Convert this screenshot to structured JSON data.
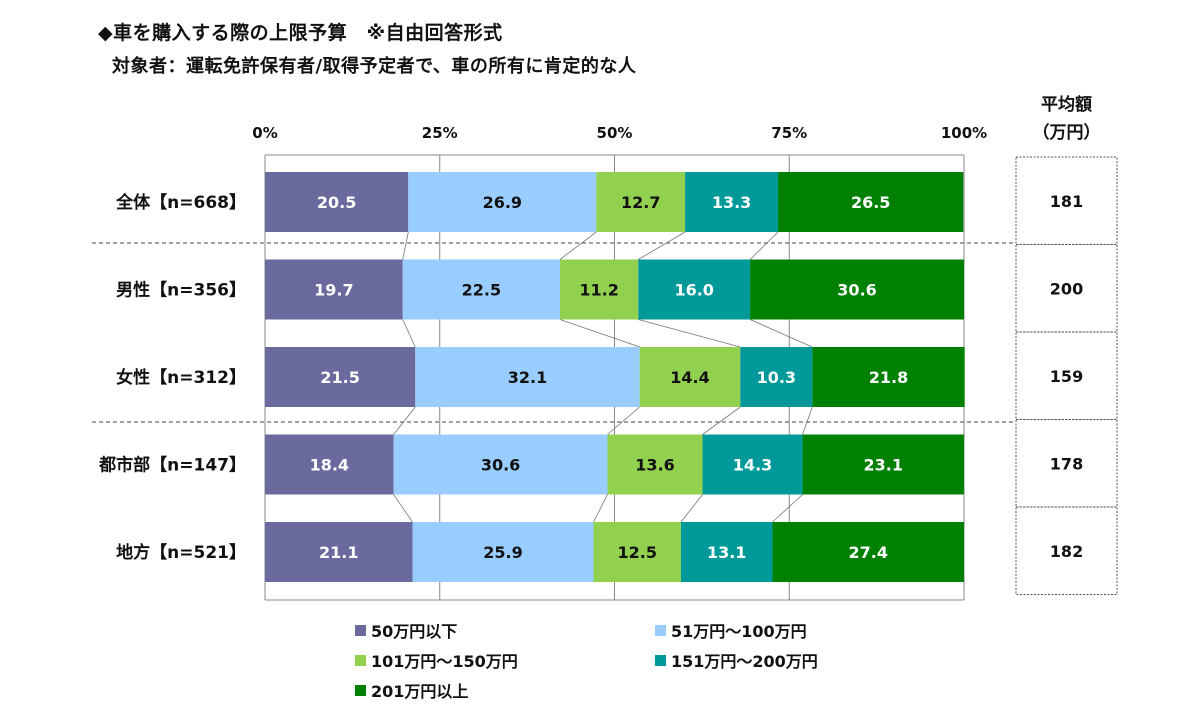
{
  "header": {
    "title": "◆車を購入する際の上限予算　※自由回答形式",
    "subtitle": "対象者：運転免許保有者/取得予定者で、車の所有に肯定的な人"
  },
  "chart_data": {
    "type": "bar",
    "orientation": "horizontal",
    "stacked": true,
    "percent": true,
    "x_ticks": [
      "0%",
      "25%",
      "50%",
      "75%",
      "100%"
    ],
    "xlim": [
      0,
      100
    ],
    "categories": [
      "全体【n=668】",
      "男性【n=356】",
      "女性【n=312】",
      "都市部【n=147】",
      "地方【n=521】"
    ],
    "series": [
      {
        "name": "50万円以下",
        "color": "#6B6A9E",
        "values": [
          20.5,
          19.7,
          21.5,
          18.4,
          21.1
        ]
      },
      {
        "name": "51万円～100万円",
        "color": "#99CCFF",
        "values": [
          26.9,
          22.5,
          32.1,
          30.6,
          25.9
        ]
      },
      {
        "name": "101万円～150万円",
        "color": "#92D050",
        "values": [
          12.7,
          11.2,
          14.4,
          13.6,
          12.5
        ]
      },
      {
        "name": "151万円～200万円",
        "color": "#00999A",
        "values": [
          13.3,
          16.0,
          10.3,
          14.3,
          13.1
        ]
      },
      {
        "name": "201万円以上",
        "color": "#008000",
        "values": [
          26.5,
          30.6,
          21.8,
          23.1,
          27.4
        ]
      }
    ],
    "label_colors": [
      "#ffffff",
      "#111111",
      "#111111",
      "#ffffff",
      "#ffffff"
    ],
    "average": {
      "header_line1": "平均額",
      "header_line2": "（万円）",
      "values": [
        181,
        200,
        159,
        178,
        182
      ]
    },
    "legend_position": "bottom",
    "grid": true
  }
}
